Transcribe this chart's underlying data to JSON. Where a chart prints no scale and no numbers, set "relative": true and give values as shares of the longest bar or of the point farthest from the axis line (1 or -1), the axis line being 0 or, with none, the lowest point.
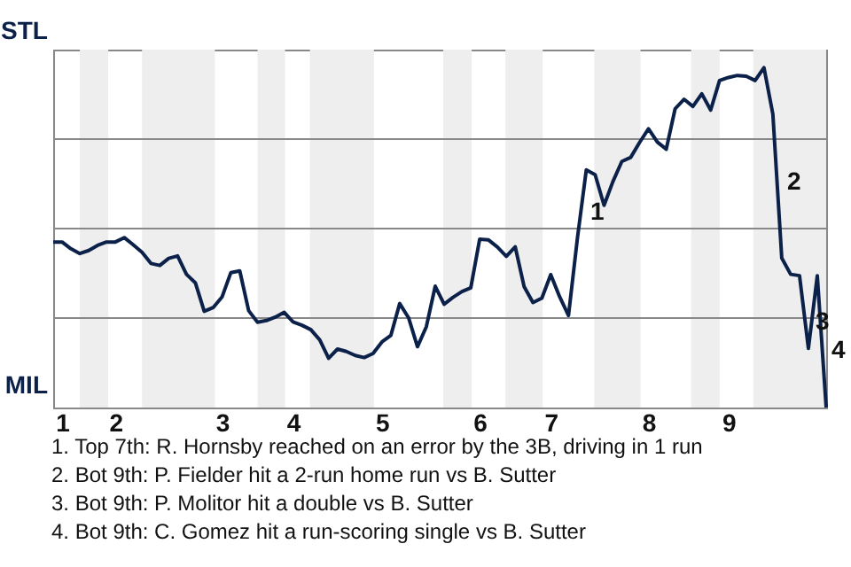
{
  "chart_data": {
    "type": "line",
    "categories": [
      null,
      "1",
      null,
      null,
      null,
      null,
      null,
      "2",
      null,
      null,
      null,
      null,
      null,
      null,
      null,
      null,
      null,
      null,
      null,
      "3",
      null,
      null,
      null,
      null,
      null,
      null,
      null,
      "4",
      null,
      null,
      null,
      null,
      null,
      null,
      null,
      null,
      null,
      "5",
      null,
      null,
      null,
      null,
      null,
      null,
      null,
      null,
      null,
      null,
      "6",
      null,
      null,
      null,
      null,
      null,
      null,
      null,
      "7",
      null,
      null,
      null,
      null,
      null,
      null,
      null,
      null,
      null,
      null,
      "8",
      null,
      null,
      null,
      null,
      null,
      null,
      null,
      null,
      "9",
      null,
      null,
      null,
      null,
      null,
      null,
      null,
      null,
      null,
      null,
      null
    ],
    "series": [
      {
        "color": "#0c2149",
        "values": [
          0.487,
          0.487,
          0.467,
          0.453,
          0.462,
          0.477,
          0.487,
          0.487,
          0.5,
          0.479,
          0.457,
          0.424,
          0.418,
          0.439,
          0.446,
          0.392,
          0.367,
          0.283,
          0.294,
          0.325,
          0.397,
          0.402,
          0.285,
          0.251,
          0.256,
          0.266,
          0.28,
          0.252,
          0.242,
          0.229,
          0.199,
          0.145,
          0.172,
          0.165,
          0.153,
          0.147,
          0.159,
          0.193,
          0.212,
          0.306,
          0.264,
          0.179,
          0.238,
          0.357,
          0.304,
          0.324,
          0.341,
          0.352,
          0.495,
          0.493,
          0.472,
          0.445,
          0.473,
          0.356,
          0.309,
          0.322,
          0.391,
          0.326,
          0.271,
          0.498,
          0.699,
          0.685,
          0.595,
          0.665,
          0.724,
          0.736,
          0.78,
          0.82,
          0.781,
          0.76,
          0.879,
          0.907,
          0.886,
          0.923,
          0.875,
          0.962,
          0.971,
          0.977,
          0.975,
          0.962,
          1.0,
          0.863,
          0.44,
          0.392,
          0.388,
          0.174,
          0.388,
          0.0
        ]
      }
    ],
    "relative": true,
    "grid": "y",
    "line_style": "solid",
    "annotations": [
      "STL",
      "MIL",
      "1",
      "2",
      "3",
      "4",
      "1. Top 7th: R. Hornsby reached on an error by the 3B, driving in 1 run",
      "2. Bot 9th: P. Fielder hit a 2-run home run vs B. Sutter",
      "3. Bot 9th: P. Molitor hit a double vs B. Sutter",
      "4. Bot 9th: C. Gomez hit a run-scoring single vs B. Sutter"
    ]
  }
}
